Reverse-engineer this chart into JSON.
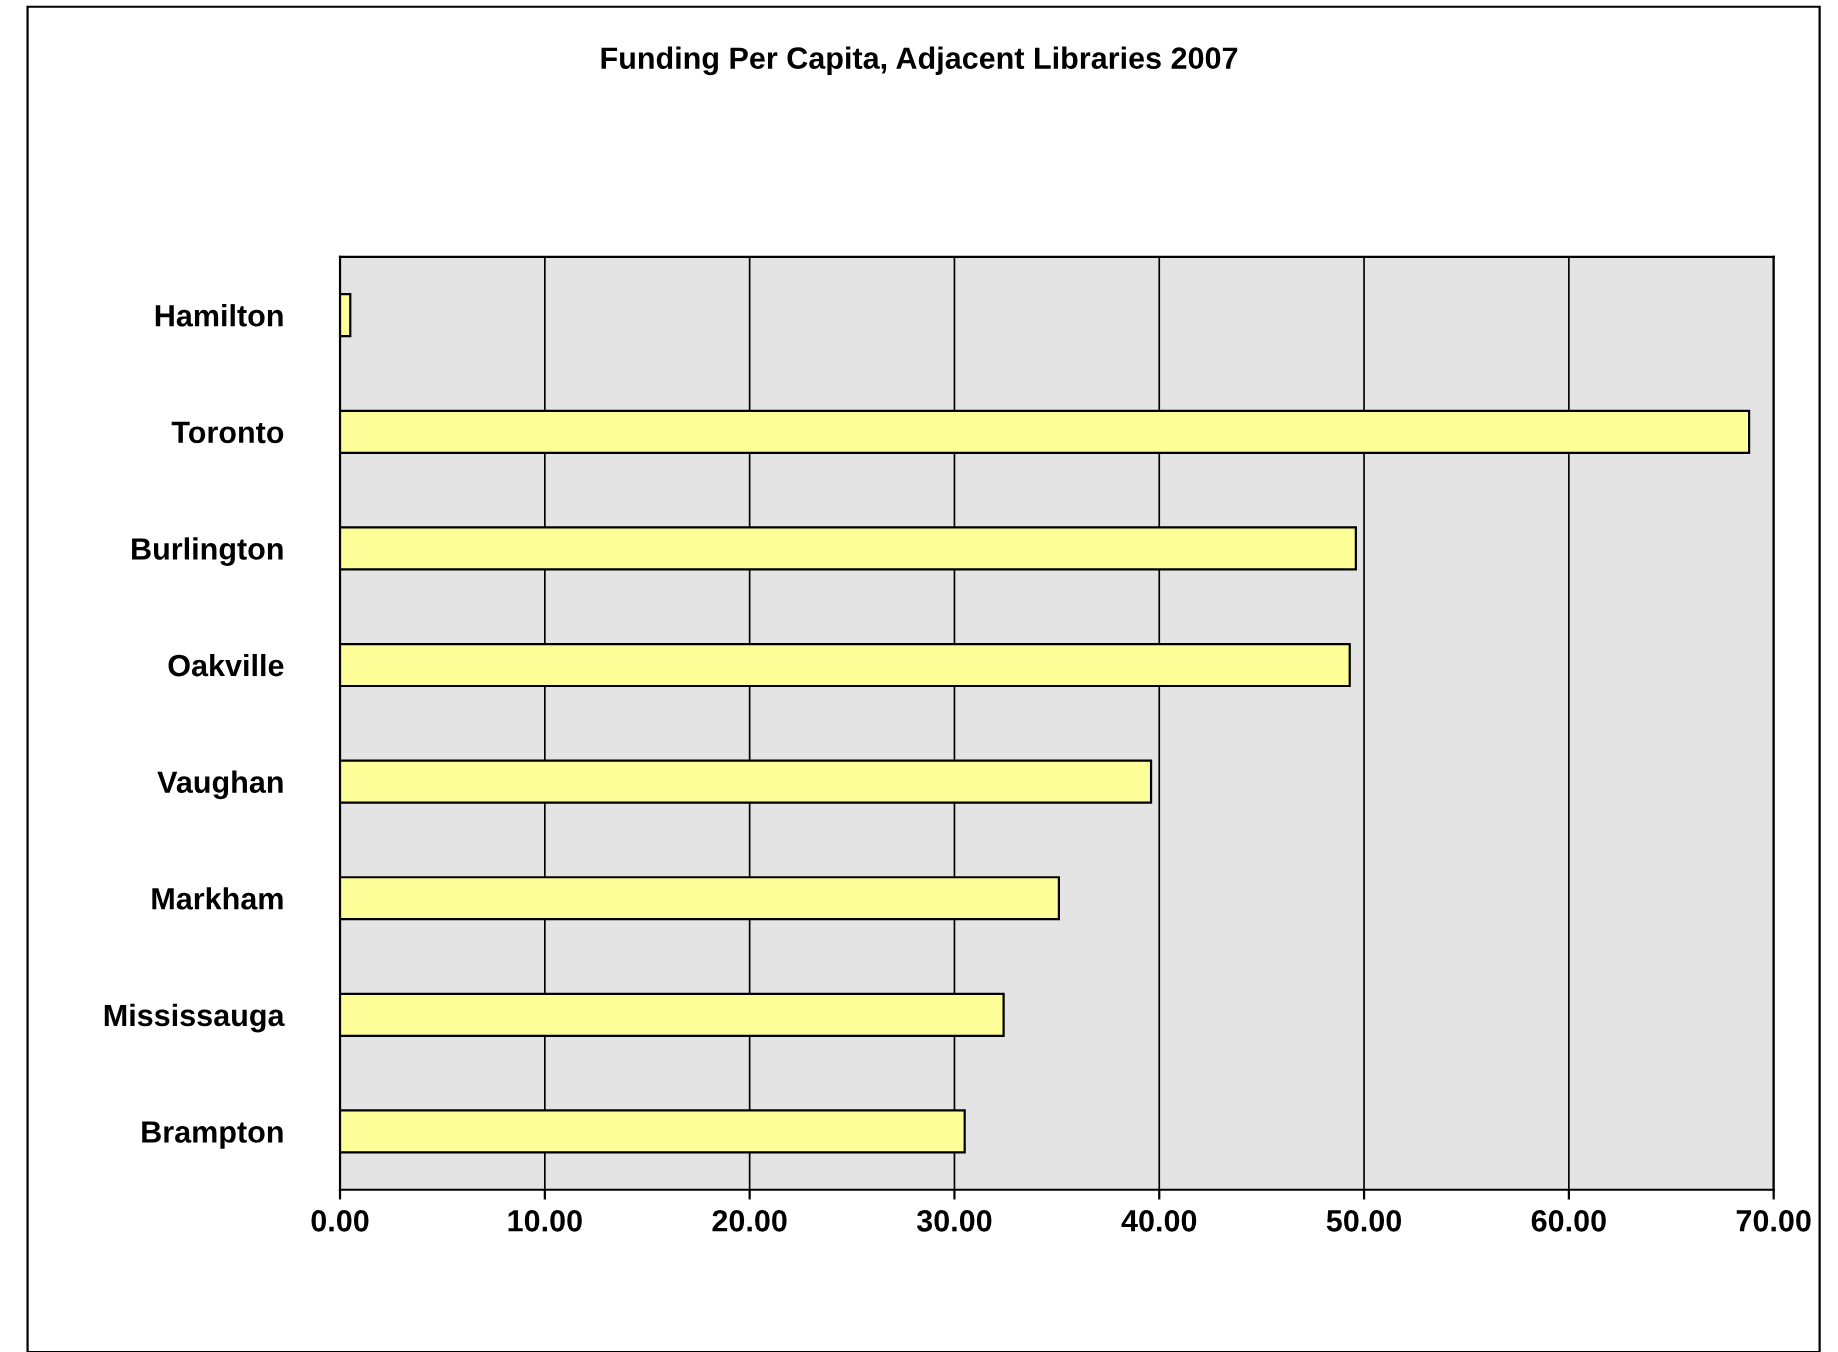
{
  "chart_data": {
    "type": "bar",
    "orientation": "horizontal",
    "title": "Funding Per Capita, Adjacent Libraries 2007",
    "categories": [
      "Hamilton",
      "Toronto",
      "Burlington",
      "Oakville",
      "Vaughan",
      "Markham",
      "Mississauga",
      "Brampton"
    ],
    "values": [
      0.5,
      68.8,
      49.6,
      49.3,
      39.6,
      35.1,
      32.4,
      30.5
    ],
    "color": "#ffff99",
    "xlim": [
      0,
      70
    ],
    "xticks": [
      {
        "value": 0,
        "label": "0.00"
      },
      {
        "value": 10,
        "label": "10.00"
      },
      {
        "value": 20,
        "label": "20.00"
      },
      {
        "value": 30,
        "label": "30.00"
      },
      {
        "value": 40,
        "label": "40.00"
      },
      {
        "value": 50,
        "label": "50.00"
      },
      {
        "value": 60,
        "label": "60.00"
      },
      {
        "value": 70,
        "label": "70.00"
      }
    ],
    "grid": "x",
    "legend": false
  }
}
